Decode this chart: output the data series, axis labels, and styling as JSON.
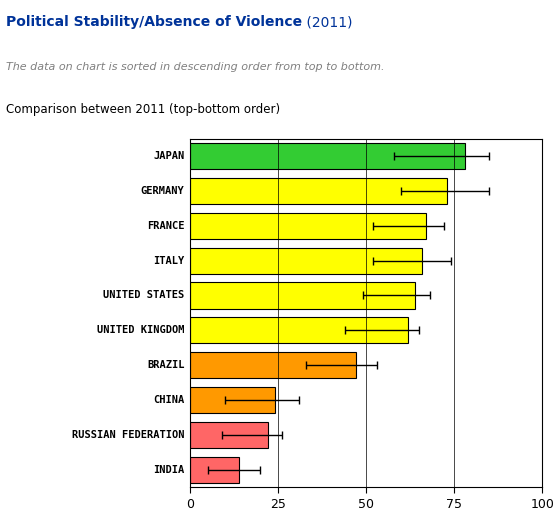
{
  "title_bold": "Political Stability/Absence of Violence",
  "title_year": " (2011)",
  "subtitle1": "The data on chart is sorted in descending order from top to bottom.",
  "subtitle2": "Comparison between 2011 (top-bottom order)",
  "categories": [
    "JAPAN",
    "GERMANY",
    "FRANCE",
    "ITALY",
    "UNITED STATES",
    "UNITED KINGDOM",
    "BRAZIL",
    "CHINA",
    "RUSSIAN FEDERATION",
    "INDIA"
  ],
  "bar_values": [
    78,
    73,
    67,
    66,
    64,
    62,
    47,
    24,
    22,
    14
  ],
  "error_centers": [
    68,
    68,
    60,
    60,
    57,
    53,
    41,
    16,
    15,
    10
  ],
  "error_low": [
    10,
    8,
    8,
    8,
    8,
    9,
    8,
    6,
    6,
    5
  ],
  "error_high": [
    17,
    17,
    12,
    14,
    11,
    12,
    12,
    15,
    11,
    10
  ],
  "bar_colors": [
    "#33cc33",
    "#ffff00",
    "#ffff00",
    "#ffff00",
    "#ffff00",
    "#ffff00",
    "#ff9900",
    "#ff9900",
    "#ff6666",
    "#ff6666"
  ],
  "bar_edge_color": "#000000",
  "xlim": [
    0,
    100
  ],
  "xticks": [
    0,
    25,
    50,
    75,
    100
  ],
  "title_color": "#003399",
  "subtitle1_color": "#808080",
  "subtitle2_color": "#000000",
  "background_color": "#ffffff",
  "figsize": [
    5.59,
    5.13
  ],
  "dpi": 100
}
